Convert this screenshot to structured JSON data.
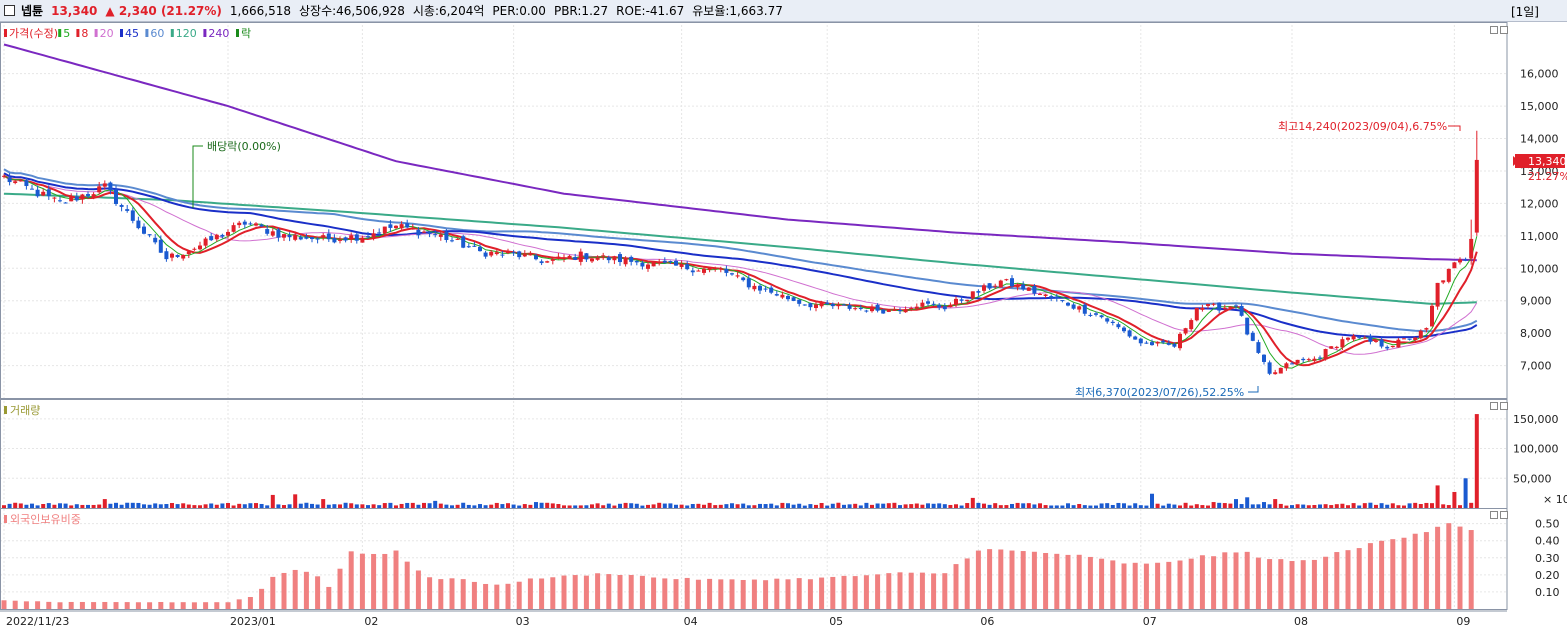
{
  "header": {
    "name": "넵튠",
    "price": "13,340",
    "change": "▲ 2,340 (21.27%)",
    "volume": "1,666,518",
    "shares": "상장수:46,506,928",
    "mcap": "시총:6,204억",
    "per": "PER:0.00",
    "pbr": "PBR:1.27",
    "roe": "ROE:-41.67",
    "float": "유보율:1,663.77",
    "period": "[1일]"
  },
  "legend_price": [
    {
      "label": "가격(수정)",
      "color": "#e0202a"
    },
    {
      "label": "5",
      "color": "#22aa22"
    },
    {
      "label": "8",
      "color": "#e0202a"
    },
    {
      "label": "20",
      "color": "#d070d0"
    },
    {
      "label": "45",
      "color": "#1a2fc8"
    },
    {
      "label": "60",
      "color": "#5a8ad0"
    },
    {
      "label": "120",
      "color": "#3aaa88"
    },
    {
      "label": "240",
      "color": "#7a28c0"
    },
    {
      "label": "락",
      "color": "#1a8a1a"
    }
  ],
  "legend_volume": {
    "label": "거래량",
    "color": "#999933"
  },
  "legend_foreign": {
    "label": "외국인보유비중",
    "color": "#f08080"
  },
  "annotations": {
    "high": "최고14,240(2023/09/04),6.75%",
    "low": "최저6,370(2023/07/26),52.25%",
    "dividend": "배당락(0.00%)",
    "last_price": "13,340",
    "last_pct": "21.27%",
    "vol_unit": "× 10"
  },
  "chart_data": {
    "type": "candlestick",
    "xlabels": [
      "2022/11/23",
      "2023/01",
      "02",
      "03",
      "04",
      "05",
      "06",
      "07",
      "08",
      "09"
    ],
    "price_axis": {
      "ylim": [
        6000,
        17500
      ],
      "ticks": [
        7000,
        8000,
        9000,
        10000,
        11000,
        12000,
        13000,
        14000,
        15000,
        16000
      ]
    },
    "volume_axis": {
      "ylim": [
        0,
        180000
      ],
      "ticks": [
        50000,
        100000,
        150000
      ]
    },
    "foreign_axis": {
      "ylim": [
        0,
        0.58
      ],
      "ticks": [
        0.1,
        0.2,
        0.3,
        0.4,
        0.5
      ]
    },
    "close_anchors": [
      [
        0,
        12800
      ],
      [
        10,
        12000
      ],
      [
        18,
        12500
      ],
      [
        25,
        11100
      ],
      [
        29,
        10300
      ],
      [
        35,
        10700
      ],
      [
        43,
        11400
      ],
      [
        50,
        11000
      ],
      [
        57,
        10900
      ],
      [
        64,
        11000
      ],
      [
        70,
        11300
      ],
      [
        78,
        11000
      ],
      [
        85,
        10500
      ],
      [
        92,
        10400
      ],
      [
        97,
        10200
      ],
      [
        103,
        10400
      ],
      [
        108,
        10300
      ],
      [
        113,
        10200
      ],
      [
        118,
        10100
      ],
      [
        123,
        10000
      ],
      [
        128,
        9950
      ],
      [
        133,
        9500
      ],
      [
        138,
        9200
      ],
      [
        143,
        8900
      ],
      [
        150,
        8800
      ],
      [
        158,
        8700
      ],
      [
        163,
        8900
      ],
      [
        168,
        8800
      ],
      [
        173,
        9200
      ],
      [
        178,
        9600
      ],
      [
        182,
        9400
      ],
      [
        185,
        9200
      ],
      [
        190,
        8900
      ],
      [
        196,
        8500
      ],
      [
        203,
        7700
      ],
      [
        209,
        7600
      ],
      [
        213,
        8800
      ],
      [
        218,
        8800
      ],
      [
        220,
        8900
      ],
      [
        222,
        8000
      ],
      [
        226,
        6700
      ],
      [
        230,
        7100
      ],
      [
        234,
        7200
      ],
      [
        240,
        7900
      ],
      [
        247,
        7600
      ],
      [
        252,
        7900
      ],
      [
        254,
        8100
      ],
      [
        256,
        9500
      ],
      [
        259,
        10100
      ],
      [
        261,
        10300
      ],
      [
        262,
        11000
      ],
      [
        263,
        13340
      ]
    ],
    "volume_spikes": [
      [
        18,
        15
      ],
      [
        48,
        22
      ],
      [
        52,
        23
      ],
      [
        57,
        15
      ],
      [
        77,
        12
      ],
      [
        95,
        10
      ],
      [
        130,
        8
      ],
      [
        173,
        17
      ],
      [
        205,
        24
      ],
      [
        216,
        10
      ],
      [
        220,
        15
      ],
      [
        222,
        18
      ],
      [
        225,
        10
      ],
      [
        227,
        15
      ],
      [
        256,
        38
      ],
      [
        259,
        27
      ],
      [
        261,
        50
      ],
      [
        263,
        158
      ]
    ],
    "foreign_anchors": [
      [
        0,
        0.05
      ],
      [
        10,
        0.04
      ],
      [
        30,
        0.04
      ],
      [
        40,
        0.04
      ],
      [
        45,
        0.08
      ],
      [
        48,
        0.19
      ],
      [
        52,
        0.23
      ],
      [
        55,
        0.22
      ],
      [
        58,
        0.13
      ],
      [
        62,
        0.34
      ],
      [
        67,
        0.32
      ],
      [
        70,
        0.34
      ],
      [
        72,
        0.27
      ],
      [
        77,
        0.17
      ],
      [
        80,
        0.18
      ],
      [
        88,
        0.14
      ],
      [
        95,
        0.18
      ],
      [
        108,
        0.21
      ],
      [
        118,
        0.18
      ],
      [
        130,
        0.17
      ],
      [
        145,
        0.18
      ],
      [
        160,
        0.21
      ],
      [
        168,
        0.21
      ],
      [
        170,
        0.26
      ],
      [
        174,
        0.35
      ],
      [
        180,
        0.34
      ],
      [
        190,
        0.32
      ],
      [
        200,
        0.27
      ],
      [
        205,
        0.26
      ],
      [
        212,
        0.3
      ],
      [
        220,
        0.33
      ],
      [
        222,
        0.33
      ],
      [
        226,
        0.29
      ],
      [
        232,
        0.28
      ],
      [
        240,
        0.34
      ],
      [
        246,
        0.4
      ],
      [
        250,
        0.43
      ],
      [
        255,
        0.47
      ],
      [
        258,
        0.51
      ],
      [
        260,
        0.49
      ],
      [
        263,
        0.44
      ]
    ],
    "ma": {
      "ma240_anchors": [
        [
          0,
          16900
        ],
        [
          40,
          15000
        ],
        [
          70,
          13300
        ],
        [
          100,
          12300
        ],
        [
          140,
          11500
        ],
        [
          170,
          11100
        ],
        [
          200,
          10800
        ],
        [
          230,
          10450
        ],
        [
          255,
          10280
        ],
        [
          263,
          10250
        ]
      ],
      "ma120_anchors": [
        [
          0,
          12300
        ],
        [
          30,
          12100
        ],
        [
          60,
          11750
        ],
        [
          100,
          11250
        ],
        [
          140,
          10650
        ],
        [
          170,
          10150
        ],
        [
          200,
          9700
        ],
        [
          230,
          9250
        ],
        [
          255,
          8900
        ],
        [
          263,
          8950
        ]
      ]
    }
  }
}
